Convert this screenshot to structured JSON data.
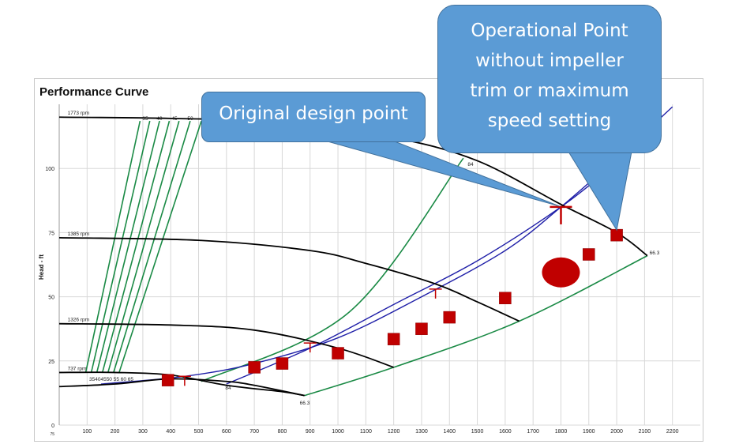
{
  "chart_data": {
    "type": "line",
    "title": "Performance Curve",
    "ylabel": "Head - ft",
    "xlabel": "",
    "xlim": [
      0,
      2300
    ],
    "ylim": [
      0,
      125
    ],
    "x_ticks": [
      100,
      200,
      300,
      400,
      500,
      600,
      700,
      800,
      900,
      1000,
      1100,
      1200,
      1300,
      1400,
      1500,
      1600,
      1700,
      1800,
      1900,
      2000,
      2100,
      2200
    ],
    "y_ticks": [
      0,
      25,
      50,
      75,
      100
    ],
    "y_ticks_extra": [
      "75"
    ],
    "grid": true,
    "speed_curves": [
      {
        "label": "1773 rpm",
        "points": [
          [
            0,
            120
          ],
          [
            400,
            119.5
          ],
          [
            800,
            118
          ],
          [
            1200,
            112
          ],
          [
            1500,
            103
          ],
          [
            1800,
            86
          ],
          [
            2000,
            75
          ],
          [
            2110,
            66
          ]
        ]
      },
      {
        "label": "1385 rpm",
        "points": [
          [
            0,
            73
          ],
          [
            500,
            72
          ],
          [
            900,
            68
          ],
          [
            1100,
            63
          ],
          [
            1350,
            55
          ],
          [
            1500,
            48
          ],
          [
            1650,
            40.5
          ]
        ]
      },
      {
        "label": "1326 rpm",
        "points": [
          [
            0,
            39.5
          ],
          [
            400,
            39
          ],
          [
            700,
            37
          ],
          [
            1000,
            30
          ],
          [
            1200,
            22.5
          ]
        ]
      },
      {
        "label": "737 rpm",
        "points": [
          [
            0,
            20.5
          ],
          [
            200,
            20.5
          ],
          [
            400,
            19.5
          ],
          [
            600,
            15.5
          ],
          [
            800,
            13
          ],
          [
            880,
            11.5
          ]
        ]
      }
    ],
    "bottom_curve": {
      "points": [
        [
          0,
          15
        ],
        [
          200,
          16
        ],
        [
          400,
          18
        ],
        [
          600,
          17
        ],
        [
          700,
          15.5
        ],
        [
          880,
          11.5
        ]
      ]
    },
    "system_curves": [
      {
        "points": [
          [
            150,
            16
          ],
          [
            450,
            19
          ],
          [
            700,
            24
          ],
          [
            1000,
            34
          ],
          [
            1300,
            50
          ],
          [
            1600,
            68
          ],
          [
            1800,
            85
          ],
          [
            2000,
            104
          ],
          [
            2200,
            124
          ]
        ]
      },
      {
        "points": [
          [
            600,
            16
          ],
          [
            900,
            30
          ],
          [
            1200,
            47
          ],
          [
            1500,
            64
          ],
          [
            1800,
            85
          ],
          [
            2000,
            102
          ],
          [
            2150,
            114
          ]
        ]
      }
    ],
    "efficiency_lines": [
      {
        "label": "35",
        "points": [
          [
            95,
            20.5
          ],
          [
            290,
            118.5
          ]
        ]
      },
      {
        "label": "40",
        "points": [
          [
            115,
            20.5
          ],
          [
            325,
            118.5
          ]
        ]
      },
      {
        "label": "45",
        "points": [
          [
            135,
            20.5
          ],
          [
            360,
            118.5
          ]
        ]
      },
      {
        "label": "50",
        "points": [
          [
            155,
            20.5
          ],
          [
            395,
            118.5
          ]
        ]
      },
      {
        "label": "55",
        "points": [
          [
            175,
            20.5
          ],
          [
            430,
            118.5
          ]
        ]
      },
      {
        "label": "60",
        "points": [
          [
            195,
            20.5
          ],
          [
            470,
            118.5
          ]
        ]
      },
      {
        "label": "65",
        "points": [
          [
            215,
            20.5
          ],
          [
            510,
            118.5
          ]
        ]
      },
      {
        "label": "84",
        "points": [
          [
            510,
            17
          ],
          [
            1040,
            44
          ],
          [
            1450,
            104
          ]
        ]
      },
      {
        "label": "66.3",
        "points": [
          [
            880,
            11.5
          ],
          [
            1200,
            22.5
          ],
          [
            1650,
            40.5
          ],
          [
            2110,
            66
          ]
        ]
      }
    ],
    "efficiency_top_labels": [
      "35",
      "40",
      "45",
      "50"
    ],
    "efficiency_bottom_labels": "35404550 55 60  65",
    "curve_labels": {
      "bep_top": "84",
      "bep_low": "84",
      "end_right": "66.3",
      "end_low": "66.3"
    },
    "red_ticks": [
      [
        450,
        19
      ],
      [
        900,
        32
      ],
      [
        1350,
        53
      ],
      [
        1800,
        85
      ]
    ],
    "data_points": [
      {
        "x": 390,
        "y": 17.5
      },
      {
        "x": 700,
        "y": 22.5
      },
      {
        "x": 800,
        "y": 24
      },
      {
        "x": 1000,
        "y": 28
      },
      {
        "x": 1200,
        "y": 33.5
      },
      {
        "x": 1300,
        "y": 37.5
      },
      {
        "x": 1400,
        "y": 42
      },
      {
        "x": 1600,
        "y": 49.5
      },
      {
        "x": 1900,
        "y": 66.5
      },
      {
        "x": 2000,
        "y": 74
      }
    ],
    "highlight_point": {
      "x": 1800,
      "y": 59.5
    },
    "colors": {
      "speed": "#000000",
      "efficiency": "#1a8a45",
      "system": "#1f1fa8",
      "marker": "#c00000",
      "grid": "#d8d8d8"
    }
  },
  "callouts": {
    "original": "Original design point",
    "operational": [
      "Operational Point",
      "without impeller",
      "trim or maximum",
      "speed setting"
    ]
  },
  "colors": {
    "callout_fill": "#5b9bd5",
    "callout_border": "#41719c"
  }
}
